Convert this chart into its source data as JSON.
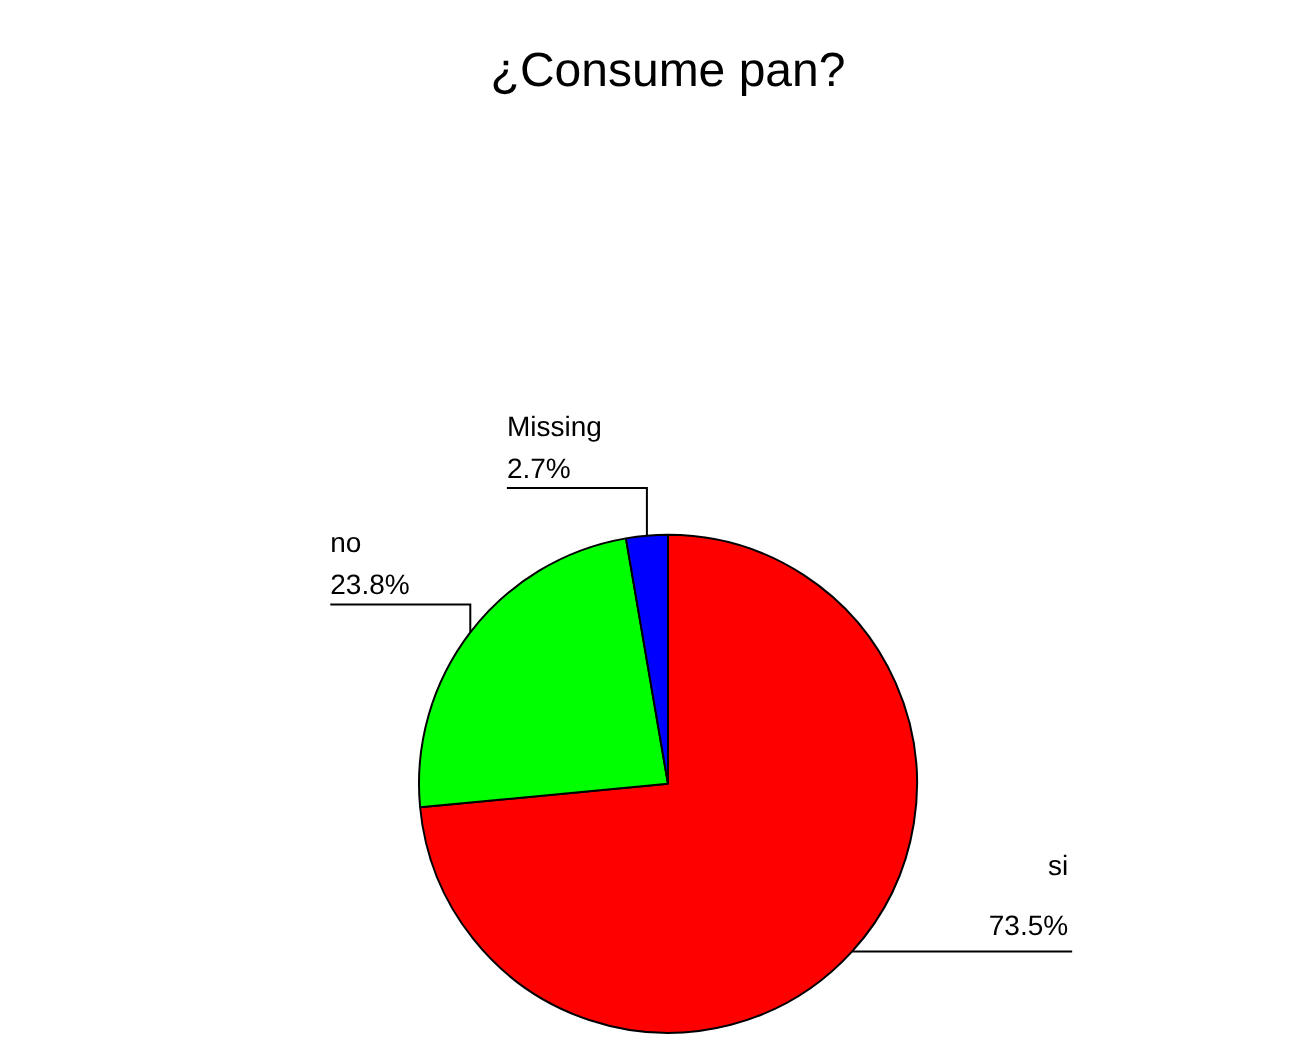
{
  "chart_data": {
    "type": "pie",
    "title": "¿Consume pan?",
    "categories": [
      "si",
      "no",
      "Missing"
    ],
    "values": [
      73.5,
      23.8,
      2.7
    ],
    "value_labels": [
      "73.5%",
      "23.8%",
      "2.7%"
    ],
    "colors": [
      "#ff0000",
      "#00ff00",
      "#0000ff"
    ],
    "legend": false
  }
}
